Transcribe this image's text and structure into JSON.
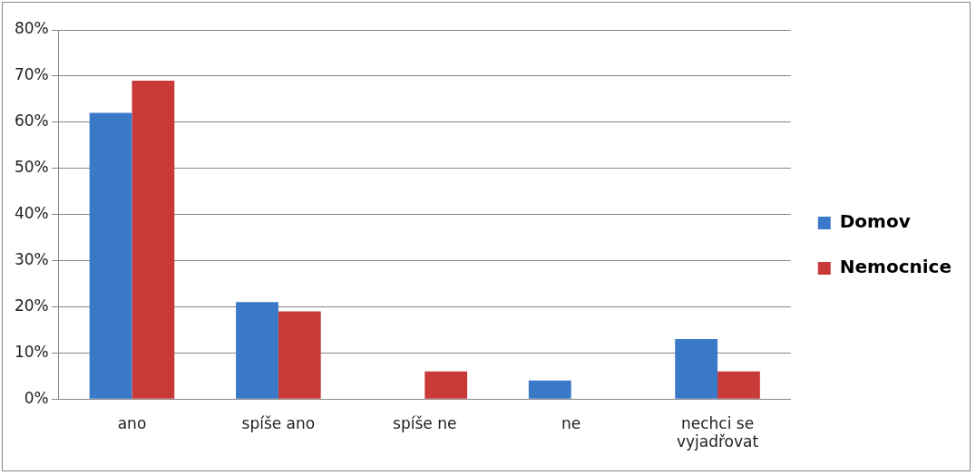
{
  "chart_data": {
    "type": "bar",
    "categories": [
      "ano",
      "spíše ano",
      "spíše ne",
      "ne",
      "nechci se vyjadřovat"
    ],
    "series": [
      {
        "name": "Domov",
        "color": "#3a78c8",
        "values": [
          62,
          21,
          0,
          4,
          13
        ]
      },
      {
        "name": "Nemocnice",
        "color": "#c83a38",
        "values": [
          69,
          19,
          6,
          0,
          6
        ]
      }
    ],
    "ylim": [
      0,
      80
    ],
    "yticks": [
      {
        "value": 0,
        "label": "0%"
      },
      {
        "value": 10,
        "label": "10%"
      },
      {
        "value": 20,
        "label": "20%"
      },
      {
        "value": 30,
        "label": "30%"
      },
      {
        "value": 40,
        "label": "40%"
      },
      {
        "value": 50,
        "label": "50%"
      },
      {
        "value": 60,
        "label": "60%"
      },
      {
        "value": 70,
        "label": "70%"
      },
      {
        "value": 80,
        "label": "80%"
      }
    ],
    "grid": "y",
    "legend": "right"
  }
}
